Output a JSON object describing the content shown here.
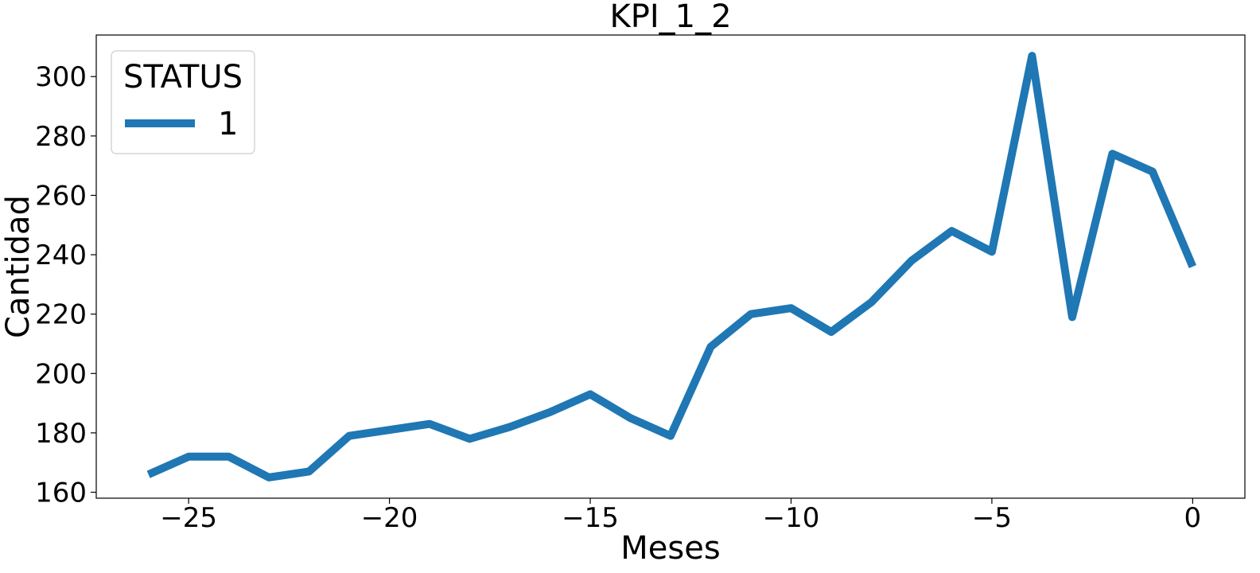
{
  "chart_data": {
    "type": "line",
    "title": "KPI_1_2",
    "xlabel": "Meses",
    "ylabel": "Cantidad",
    "xlim": [
      -27.3,
      1.3
    ],
    "ylim": [
      158,
      314
    ],
    "xticks": [
      -25,
      -20,
      -15,
      -10,
      -5,
      0
    ],
    "xtick_labels": [
      "−25",
      "−20",
      "−15",
      "−10",
      "−5",
      "0"
    ],
    "yticks": [
      160,
      180,
      200,
      220,
      240,
      260,
      280,
      300
    ],
    "ytick_labels": [
      "160",
      "180",
      "200",
      "220",
      "240",
      "260",
      "280",
      "300"
    ],
    "grid": false,
    "legend": {
      "title": "STATUS",
      "placement": "top-left"
    },
    "series": [
      {
        "name": "1",
        "color": "#1f77b4",
        "x": [
          -26,
          -25,
          -24,
          -23,
          -22,
          -21,
          -20,
          -19,
          -18,
          -17,
          -16,
          -15,
          -14,
          -13,
          -12,
          -11,
          -10,
          -9,
          -8,
          -7,
          -6,
          -5,
          -4,
          -3,
          -2,
          -1,
          0
        ],
        "y": [
          166,
          172,
          172,
          165,
          167,
          179,
          181,
          183,
          178,
          182,
          187,
          193,
          185,
          179,
          209,
          220,
          222,
          214,
          224,
          238,
          248,
          241,
          307,
          219,
          274,
          268,
          236
        ]
      }
    ]
  }
}
